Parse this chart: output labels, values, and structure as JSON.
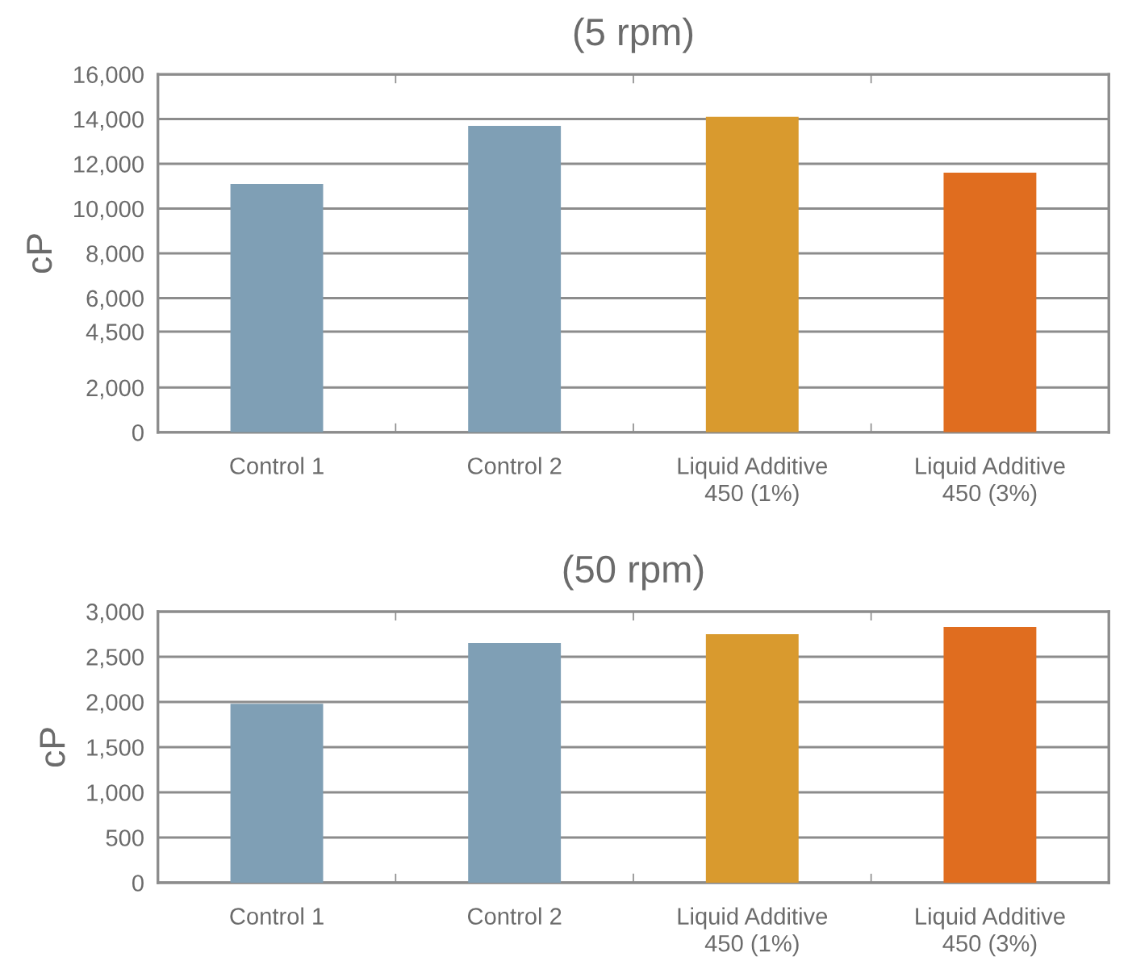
{
  "chart_data": [
    {
      "type": "bar",
      "title": "(5 rpm)",
      "ylabel": "cP",
      "categories": [
        "Control 1",
        "Control 2",
        "Liquid Additive\n450 (1%)",
        "Liquid Additive\n450 (3%)"
      ],
      "values": [
        11100,
        13700,
        14100,
        11600
      ],
      "colors": [
        "#7f9fb5",
        "#7f9fb5",
        "#d99a2e",
        "#e06d1f"
      ],
      "ylim": [
        0,
        16000
      ],
      "yticks": [
        0,
        {
          "value": 2000,
          "label": "2,000"
        },
        {
          "value": 4500,
          "label": "4,500"
        },
        {
          "value": 6000,
          "label": "6,000"
        },
        {
          "value": 8000,
          "label": "8,000"
        },
        {
          "value": 10000,
          "label": "10,000"
        },
        {
          "value": 12000,
          "label": "12,000"
        },
        {
          "value": 14000,
          "label": "14,000"
        },
        {
          "value": 16000,
          "label": "16,000"
        }
      ],
      "grid": "y"
    },
    {
      "type": "bar",
      "title": "(50 rpm)",
      "ylabel": "cP",
      "categories": [
        "Control 1",
        "Control 2",
        "Liquid Additive\n450 (1%)",
        "Liquid Additive\n450 (3%)"
      ],
      "values": [
        1980,
        2650,
        2750,
        2830
      ],
      "colors": [
        "#7f9fb5",
        "#7f9fb5",
        "#d99a2e",
        "#e06d1f"
      ],
      "ylim": [
        0,
        3000
      ],
      "yticks": [
        0,
        500,
        {
          "value": 1000,
          "label": "1,000"
        },
        {
          "value": 1500,
          "label": "1,500"
        },
        {
          "value": 2000,
          "label": "2,000"
        },
        {
          "value": 2500,
          "label": "2,500"
        },
        {
          "value": 3000,
          "label": "3,000"
        }
      ],
      "grid": "y"
    }
  ]
}
